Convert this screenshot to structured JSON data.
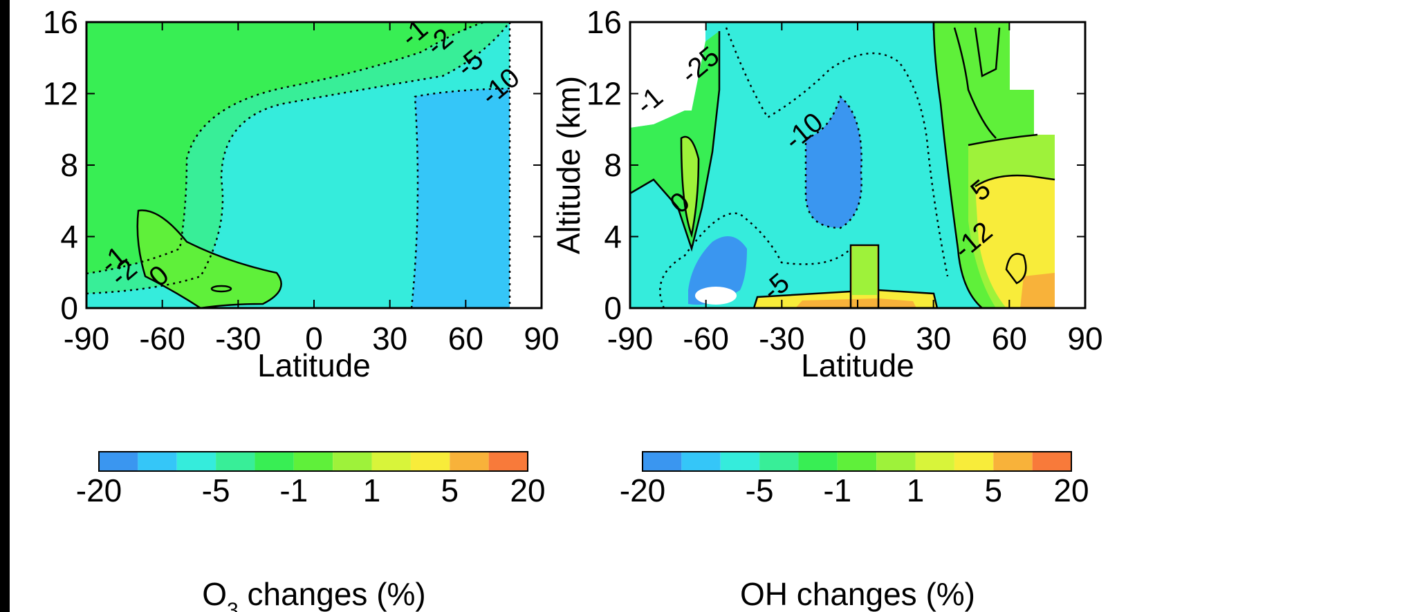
{
  "colors": {
    "scale": [
      "#3a96f0",
      "#35c6f8",
      "#35ecdc",
      "#38ee98",
      "#38ee54",
      "#5ff03a",
      "#9ef23a",
      "#d8f43a",
      "#f8ec3a",
      "#f8b23a",
      "#f87a3a"
    ],
    "contour_line": "#000000",
    "missing": "#ffffff"
  },
  "chart_data": [
    {
      "type": "heatmap",
      "panel": "O3",
      "xlabel": "Latitude",
      "ylabel": "",
      "xlim": [
        -90,
        90
      ],
      "ylim": [
        0,
        16
      ],
      "xticks": [
        "-90",
        "-60",
        "-30",
        "0",
        "30",
        "60",
        "90"
      ],
      "yticks": [
        "0",
        "4",
        "8",
        "12",
        "16"
      ],
      "colorbar": {
        "label_prefix": "O",
        "label_sub": "3",
        "label_suffix": " changes (%)",
        "levels": [
          -20,
          -10,
          -5,
          -2,
          -1,
          0,
          1,
          2,
          5,
          10,
          20
        ],
        "tick_labels": [
          "-20",
          "-5",
          "-1",
          "1",
          "5",
          "20"
        ]
      },
      "contour_labels": [
        {
          "text": "-1",
          "lat": 42,
          "alt": 15.0
        },
        {
          "text": "-2",
          "lat": 52,
          "alt": 14.5
        },
        {
          "text": "-5",
          "lat": 64,
          "alt": 13.3
        },
        {
          "text": "-10",
          "lat": 76,
          "alt": 12.0
        },
        {
          "text": "-1",
          "lat": -77,
          "alt": 2.3
        },
        {
          "text": "-2",
          "lat": -73,
          "alt": 1.6
        },
        {
          "text": "0",
          "lat": -59,
          "alt": 1.4
        }
      ]
    },
    {
      "type": "heatmap",
      "panel": "OH",
      "xlabel": "Latitude",
      "ylabel": "Altitude (km)",
      "xlim": [
        -90,
        90
      ],
      "ylim": [
        0,
        16
      ],
      "xticks": [
        "-90",
        "-60",
        "-30",
        "0",
        "30",
        "60",
        "90"
      ],
      "yticks": [
        "0",
        "4",
        "8",
        "12",
        "16"
      ],
      "colorbar": {
        "label_prefix": "OH",
        "label_sub": "",
        "label_suffix": " changes (%)",
        "levels": [
          -20,
          -10,
          -5,
          -2,
          -1,
          0,
          1,
          2,
          5,
          10,
          20
        ],
        "tick_labels": [
          "-20",
          "-5",
          "-1",
          "1",
          "5",
          "20"
        ]
      },
      "contour_labels": [
        {
          "text": "-10",
          "lat": -19,
          "alt": 9.5
        },
        {
          "text": "5",
          "lat": 51,
          "alt": 6.2
        },
        {
          "text": "-12",
          "lat": 48,
          "alt": 3.4
        },
        {
          "text": "-1",
          "lat": -80,
          "alt": 11.2
        },
        {
          "text": "-5",
          "lat": -30,
          "alt": 0.8
        },
        {
          "text": "0",
          "lat": -68,
          "alt": 5.5
        },
        {
          "text": "-25",
          "lat": -60,
          "alt": 13.2
        }
      ]
    }
  ]
}
